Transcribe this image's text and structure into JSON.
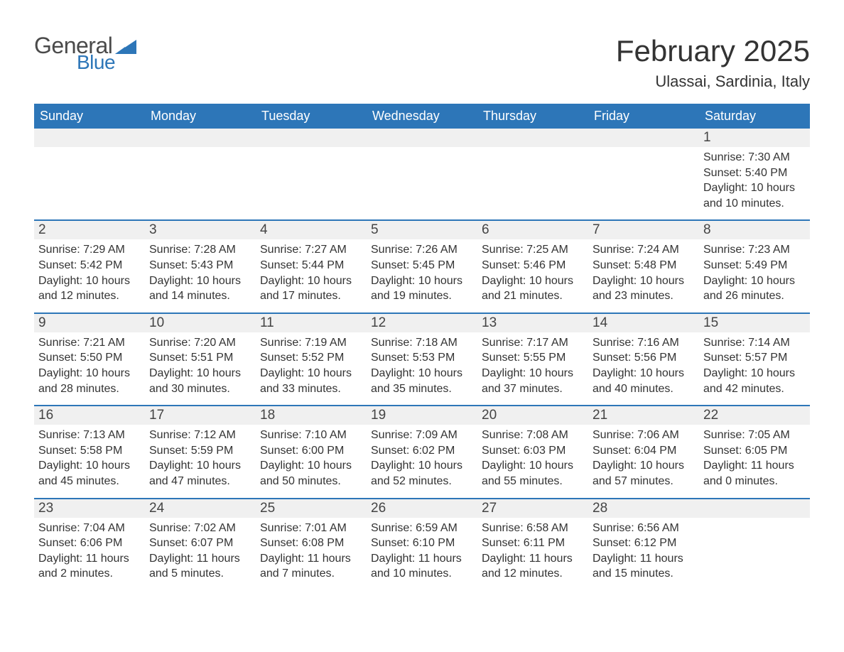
{
  "logo": {
    "text1": "General",
    "text2": "Blue",
    "text_color1": "#4a4a4a",
    "text_color2": "#2d76b8",
    "wedge_color": "#2d76b8"
  },
  "title": "February 2025",
  "location": "Ulassai, Sardinia, Italy",
  "colors": {
    "header_bg": "#2d76b8",
    "header_text": "#ffffff",
    "day_head_bg": "#f0f0f0",
    "week_divider": "#2d76b8",
    "body_text": "#333333",
    "page_bg": "#ffffff"
  },
  "typography": {
    "title_fontsize_pt": 32,
    "location_fontsize_pt": 17,
    "weekday_fontsize_pt": 14,
    "daynum_fontsize_pt": 14,
    "body_fontsize_pt": 12,
    "font_family": "Arial"
  },
  "weekdays": [
    "Sunday",
    "Monday",
    "Tuesday",
    "Wednesday",
    "Thursday",
    "Friday",
    "Saturday"
  ],
  "weeks": [
    [
      {
        "empty": true
      },
      {
        "empty": true
      },
      {
        "empty": true
      },
      {
        "empty": true
      },
      {
        "empty": true
      },
      {
        "empty": true
      },
      {
        "day": "1",
        "sunrise": "Sunrise: 7:30 AM",
        "sunset": "Sunset: 5:40 PM",
        "daylight": "Daylight: 10 hours and 10 minutes."
      }
    ],
    [
      {
        "day": "2",
        "sunrise": "Sunrise: 7:29 AM",
        "sunset": "Sunset: 5:42 PM",
        "daylight": "Daylight: 10 hours and 12 minutes."
      },
      {
        "day": "3",
        "sunrise": "Sunrise: 7:28 AM",
        "sunset": "Sunset: 5:43 PM",
        "daylight": "Daylight: 10 hours and 14 minutes."
      },
      {
        "day": "4",
        "sunrise": "Sunrise: 7:27 AM",
        "sunset": "Sunset: 5:44 PM",
        "daylight": "Daylight: 10 hours and 17 minutes."
      },
      {
        "day": "5",
        "sunrise": "Sunrise: 7:26 AM",
        "sunset": "Sunset: 5:45 PM",
        "daylight": "Daylight: 10 hours and 19 minutes."
      },
      {
        "day": "6",
        "sunrise": "Sunrise: 7:25 AM",
        "sunset": "Sunset: 5:46 PM",
        "daylight": "Daylight: 10 hours and 21 minutes."
      },
      {
        "day": "7",
        "sunrise": "Sunrise: 7:24 AM",
        "sunset": "Sunset: 5:48 PM",
        "daylight": "Daylight: 10 hours and 23 minutes."
      },
      {
        "day": "8",
        "sunrise": "Sunrise: 7:23 AM",
        "sunset": "Sunset: 5:49 PM",
        "daylight": "Daylight: 10 hours and 26 minutes."
      }
    ],
    [
      {
        "day": "9",
        "sunrise": "Sunrise: 7:21 AM",
        "sunset": "Sunset: 5:50 PM",
        "daylight": "Daylight: 10 hours and 28 minutes."
      },
      {
        "day": "10",
        "sunrise": "Sunrise: 7:20 AM",
        "sunset": "Sunset: 5:51 PM",
        "daylight": "Daylight: 10 hours and 30 minutes."
      },
      {
        "day": "11",
        "sunrise": "Sunrise: 7:19 AM",
        "sunset": "Sunset: 5:52 PM",
        "daylight": "Daylight: 10 hours and 33 minutes."
      },
      {
        "day": "12",
        "sunrise": "Sunrise: 7:18 AM",
        "sunset": "Sunset: 5:53 PM",
        "daylight": "Daylight: 10 hours and 35 minutes."
      },
      {
        "day": "13",
        "sunrise": "Sunrise: 7:17 AM",
        "sunset": "Sunset: 5:55 PM",
        "daylight": "Daylight: 10 hours and 37 minutes."
      },
      {
        "day": "14",
        "sunrise": "Sunrise: 7:16 AM",
        "sunset": "Sunset: 5:56 PM",
        "daylight": "Daylight: 10 hours and 40 minutes."
      },
      {
        "day": "15",
        "sunrise": "Sunrise: 7:14 AM",
        "sunset": "Sunset: 5:57 PM",
        "daylight": "Daylight: 10 hours and 42 minutes."
      }
    ],
    [
      {
        "day": "16",
        "sunrise": "Sunrise: 7:13 AM",
        "sunset": "Sunset: 5:58 PM",
        "daylight": "Daylight: 10 hours and 45 minutes."
      },
      {
        "day": "17",
        "sunrise": "Sunrise: 7:12 AM",
        "sunset": "Sunset: 5:59 PM",
        "daylight": "Daylight: 10 hours and 47 minutes."
      },
      {
        "day": "18",
        "sunrise": "Sunrise: 7:10 AM",
        "sunset": "Sunset: 6:00 PM",
        "daylight": "Daylight: 10 hours and 50 minutes."
      },
      {
        "day": "19",
        "sunrise": "Sunrise: 7:09 AM",
        "sunset": "Sunset: 6:02 PM",
        "daylight": "Daylight: 10 hours and 52 minutes."
      },
      {
        "day": "20",
        "sunrise": "Sunrise: 7:08 AM",
        "sunset": "Sunset: 6:03 PM",
        "daylight": "Daylight: 10 hours and 55 minutes."
      },
      {
        "day": "21",
        "sunrise": "Sunrise: 7:06 AM",
        "sunset": "Sunset: 6:04 PM",
        "daylight": "Daylight: 10 hours and 57 minutes."
      },
      {
        "day": "22",
        "sunrise": "Sunrise: 7:05 AM",
        "sunset": "Sunset: 6:05 PM",
        "daylight": "Daylight: 11 hours and 0 minutes."
      }
    ],
    [
      {
        "day": "23",
        "sunrise": "Sunrise: 7:04 AM",
        "sunset": "Sunset: 6:06 PM",
        "daylight": "Daylight: 11 hours and 2 minutes."
      },
      {
        "day": "24",
        "sunrise": "Sunrise: 7:02 AM",
        "sunset": "Sunset: 6:07 PM",
        "daylight": "Daylight: 11 hours and 5 minutes."
      },
      {
        "day": "25",
        "sunrise": "Sunrise: 7:01 AM",
        "sunset": "Sunset: 6:08 PM",
        "daylight": "Daylight: 11 hours and 7 minutes."
      },
      {
        "day": "26",
        "sunrise": "Sunrise: 6:59 AM",
        "sunset": "Sunset: 6:10 PM",
        "daylight": "Daylight: 11 hours and 10 minutes."
      },
      {
        "day": "27",
        "sunrise": "Sunrise: 6:58 AM",
        "sunset": "Sunset: 6:11 PM",
        "daylight": "Daylight: 11 hours and 12 minutes."
      },
      {
        "day": "28",
        "sunrise": "Sunrise: 6:56 AM",
        "sunset": "Sunset: 6:12 PM",
        "daylight": "Daylight: 11 hours and 15 minutes."
      },
      {
        "empty": true
      }
    ]
  ]
}
